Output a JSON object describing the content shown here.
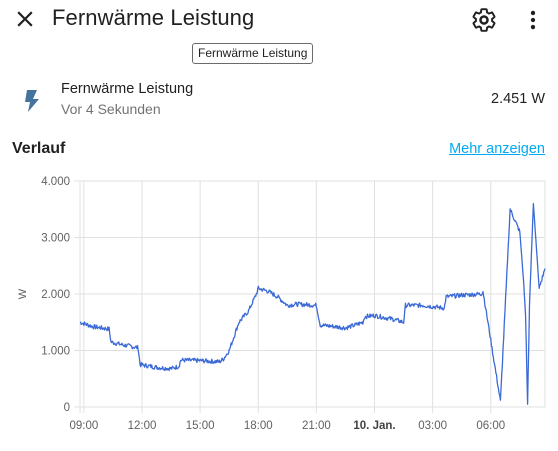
{
  "dialog": {
    "title": "Fernwärme Leistung",
    "tooltip": "Fernwärme Leistung",
    "icons": {
      "close": "close-icon",
      "settings": "gear-icon",
      "more": "more-vertical-icon"
    }
  },
  "entity": {
    "icon": "flash-icon",
    "name": "Fernwärme Leistung",
    "last_changed": "Vor 4 Sekunden",
    "state": "2.451 W",
    "icon_color": "#44739e"
  },
  "history": {
    "title": "Verlauf",
    "more_link": "Mehr anzeigen",
    "link_color": "#03a9f4"
  },
  "chart_data": {
    "type": "line",
    "ylabel": "W",
    "ylim": [
      0,
      4000
    ],
    "y_ticks": [
      "4.000",
      "3.000",
      "2.000",
      "1.000",
      "0"
    ],
    "y_tick_values": [
      4000,
      3000,
      2000,
      1000,
      0
    ],
    "x_ticks": [
      "09:00",
      "12:00",
      "15:00",
      "18:00",
      "21:00",
      "10. Jan.",
      "03:00",
      "06:00"
    ],
    "x_tick_hours": [
      0,
      3,
      6,
      9,
      12,
      15,
      18,
      21
    ],
    "x_range_hours": [
      -0.2,
      23.8
    ],
    "bold_tick": "10. Jan.",
    "grid": true,
    "line_color": "#3b6ad6",
    "series": [
      {
        "x": [
          -0.2,
          0.5,
          1.3,
          1.4,
          2.0,
          2.8,
          2.9,
          3.8,
          4.5,
          4.9,
          5.0,
          6.0,
          7.0,
          7.2,
          7.5,
          8.0,
          8.5,
          8.9,
          9.0,
          9.5,
          10.0,
          10.5,
          11.0,
          12.0,
          12.2,
          12.8,
          13.5,
          14.0,
          14.4,
          14.5,
          15.0,
          16.0,
          16.5,
          16.6,
          17.5,
          18.6,
          18.7,
          19.5,
          20.5,
          20.6,
          21.5,
          22.0,
          22.5,
          22.7,
          22.8,
          22.9,
          23.0,
          23.2,
          23.5,
          23.8
        ],
        "y": [
          1500,
          1420,
          1380,
          1150,
          1100,
          1050,
          750,
          700,
          680,
          720,
          830,
          820,
          800,
          850,
          1000,
          1500,
          1700,
          2000,
          2100,
          2050,
          1950,
          1800,
          1820,
          1800,
          1450,
          1430,
          1400,
          1450,
          1500,
          1600,
          1620,
          1550,
          1500,
          1800,
          1800,
          1750,
          1950,
          1980,
          2000,
          2050,
          100,
          3500,
          3100,
          2200,
          1600,
          50,
          1800,
          3600,
          2100,
          2450
        ]
      }
    ]
  }
}
